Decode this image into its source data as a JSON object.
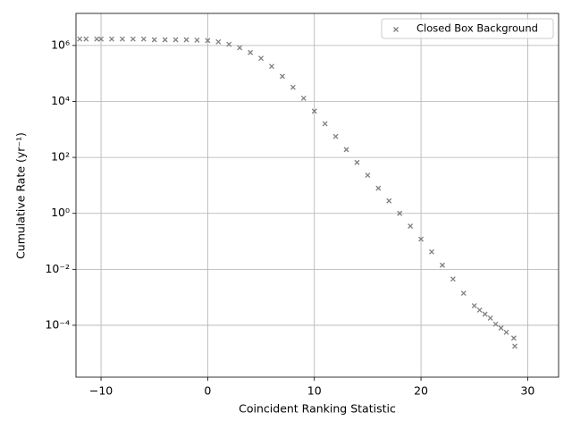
{
  "chart_data": {
    "type": "scatter",
    "xlabel": "Coincident Ranking Statistic",
    "ylabel": "Cumulative Rate (yr⁻¹)",
    "yscale": "log",
    "grid": true,
    "legend": "upper right",
    "xlim": [
      -12.35,
      32.9
    ],
    "ylim": [
      1.4e-06,
      14000000.0
    ],
    "xticks": [
      {
        "value": -10,
        "label": "−10"
      },
      0,
      10,
      20,
      30
    ],
    "yticks": [
      {
        "value": 0.0001,
        "label": "10⁻⁴"
      },
      {
        "value": 0.01,
        "label": "10⁻²"
      },
      {
        "value": 1,
        "label": "10⁰"
      },
      {
        "value": 100,
        "label": "10²"
      },
      {
        "value": 10000,
        "label": "10⁴"
      },
      {
        "value": 1000000,
        "label": "10⁶"
      }
    ],
    "series": [
      {
        "name": "Closed Box Background",
        "color": "#7f7f7f",
        "x": [
          -12.0,
          -11.4,
          -10.4,
          -10.0,
          -9,
          -8,
          -7,
          -6,
          -5,
          -4,
          -3,
          -2,
          -1,
          0,
          1,
          2,
          3,
          4,
          5,
          6,
          7,
          8,
          9,
          10,
          11,
          12,
          13,
          14,
          15,
          16,
          17,
          18,
          19,
          20,
          21,
          22,
          23,
          24,
          25,
          25.5,
          26,
          26.5,
          27,
          27.5,
          28,
          28.7,
          28.8
        ],
        "values": [
          1700000,
          1700000,
          1700000,
          1700000,
          1700000,
          1700000,
          1700000,
          1700000,
          1600000,
          1600000,
          1600000,
          1600000,
          1550000,
          1500000,
          1350000,
          1100000,
          830000,
          560000,
          350000,
          180000,
          79000,
          32000,
          13000,
          4500,
          1600,
          560,
          190,
          66,
          23,
          7.9,
          2.8,
          1,
          0.35,
          0.12,
          0.042,
          0.014,
          0.0045,
          0.0014,
          0.0005,
          0.00035,
          0.00025,
          0.00018,
          0.00011,
          8e-05,
          5.6e-05,
          3.5e-05,
          1.8e-05
        ]
      }
    ]
  }
}
